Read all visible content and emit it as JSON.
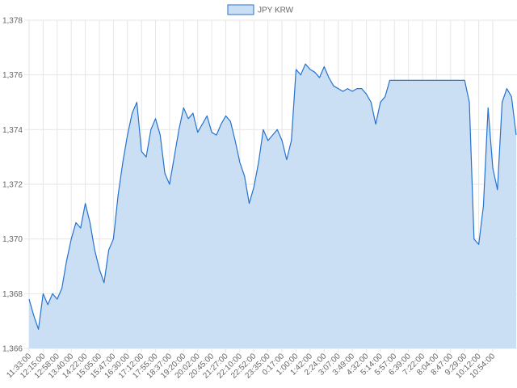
{
  "chart_data": {
    "type": "line",
    "area": true,
    "grid": true,
    "legend": "top",
    "categories": [
      "11:33:00",
      null,
      null,
      "12:15:00",
      null,
      null,
      "12:58:00",
      null,
      null,
      "13:40:00",
      null,
      null,
      "14:22:00",
      null,
      null,
      "15:05:00",
      null,
      null,
      "15:47:00",
      null,
      null,
      "16:30:00",
      null,
      null,
      "17:12:00",
      null,
      null,
      "17:55:00",
      null,
      null,
      "18:37:00",
      null,
      null,
      "19:20:00",
      null,
      null,
      "20:02:00",
      null,
      null,
      "20:45:00",
      null,
      null,
      "21:27:00",
      null,
      null,
      "22:10:00",
      null,
      null,
      "22:52:00",
      null,
      null,
      "23:35:00",
      null,
      null,
      "0:17:00",
      null,
      null,
      "1:00:00",
      null,
      null,
      "1:42:00",
      null,
      null,
      "2:24:00",
      null,
      null,
      "3:07:00",
      null,
      null,
      "3:49:00",
      null,
      null,
      "4:32:00",
      null,
      null,
      "5:14:00",
      null,
      null,
      "5:57:00",
      null,
      null,
      "6:39:00",
      null,
      null,
      "7:22:00",
      null,
      null,
      "8:04:00",
      null,
      null,
      "8:47:00",
      null,
      null,
      "9:29:00",
      null,
      null,
      "10:12:00",
      null,
      null,
      "10:54:00",
      null,
      null,
      null,
      null,
      null
    ],
    "series": [
      {
        "name": "JPY KRW",
        "color": "#2672cf",
        "fill": "#cadff4",
        "values": [
          1367.8,
          1367.2,
          1366.7,
          1368,
          1367.6,
          1368,
          1367.8,
          1368.2,
          1369.2,
          1370,
          1370.6,
          1370.4,
          1371.3,
          1370.6,
          1369.6,
          1368.9,
          1368.4,
          1369.6,
          1370,
          1371.6,
          1372.8,
          1373.8,
          1374.6,
          1375,
          1373.2,
          1373,
          1374,
          1374.4,
          1373.8,
          1372.4,
          1372,
          1373,
          1374,
          1374.8,
          1374.4,
          1374.6,
          1373.9,
          1374.2,
          1374.5,
          1373.9,
          1373.8,
          1374.2,
          1374.5,
          1374.3,
          1373.6,
          1372.8,
          1372.3,
          1371.3,
          1371.9,
          1372.8,
          1374,
          1373.6,
          1373.8,
          1374,
          1373.6,
          1372.9,
          1373.6,
          1376.2,
          1376,
          1376.4,
          1376.2,
          1376.1,
          1375.9,
          1376.3,
          1375.9,
          1375.6,
          1375.5,
          1375.4,
          1375.5,
          1375.4,
          1375.5,
          1375.5,
          1375.3,
          1375,
          1374.2,
          1375,
          1375.2,
          1375.8,
          1375.8,
          1375.8,
          1375.8,
          1375.8,
          1375.8,
          1375.8,
          1375.8,
          1375.8,
          1375.8,
          1375.8,
          1375.8,
          1375.8,
          1375.8,
          1375.8,
          1375.8,
          1375.8,
          1375,
          1370,
          1369.8,
          1371.2,
          1374.8,
          1372.6,
          1371.8,
          1375,
          1375.5,
          1375.2,
          1373.8
        ]
      }
    ],
    "ylim": [
      1366,
      1378
    ],
    "yticks": [
      {
        "value": 1366,
        "label": "1,366"
      },
      {
        "value": 1368,
        "label": "1,368"
      },
      {
        "value": 1370,
        "label": "1,370"
      },
      {
        "value": 1372,
        "label": "1,372"
      },
      {
        "value": 1374,
        "label": "1,374"
      },
      {
        "value": 1376,
        "label": "1,376"
      },
      {
        "value": 1378,
        "label": "1,378"
      }
    ]
  }
}
